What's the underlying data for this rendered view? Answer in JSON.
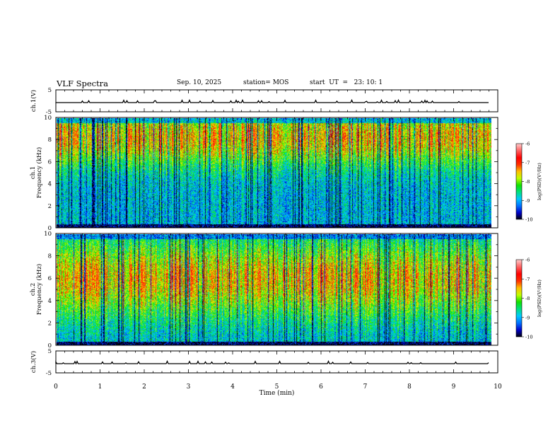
{
  "header": {
    "title": "VLF Spectra",
    "date": "Sep. 10, 2025",
    "station": "station= MOS",
    "start_ut": "start  UT  =   23: 10: 1"
  },
  "colors": {
    "colormap": [
      "#000000",
      "#0000c8",
      "#0070ff",
      "#00c8ff",
      "#00e080",
      "#10e000",
      "#c0ff00",
      "#ffc000",
      "#ff3000",
      "#ff0000",
      "#ff6060",
      "#ffc8c8"
    ],
    "background": "#ffffff",
    "axis": "#000000"
  },
  "chart_data": [
    {
      "id": "ch1-waveform",
      "type": "line",
      "ylabel": "ch.1(V)",
      "ylim": [
        -5,
        5
      ],
      "yticks": [
        "5",
        "-5"
      ],
      "xlim": [
        0,
        10
      ],
      "baseline": -0.8,
      "description_values": "near-constant trace around -0.8 V with small spikes"
    },
    {
      "id": "ch1-spectrogram",
      "type": "heatmap",
      "ylabel": "ch.1\nFrequency (kHz)",
      "ylabel_lines": [
        "ch.1",
        "Frequency (kHz)"
      ],
      "ylim": [
        0,
        10
      ],
      "yticks": [
        "0",
        "2",
        "4",
        "6",
        "8",
        "10"
      ],
      "xlim": [
        0,
        9.85
      ],
      "zlim": [
        -10,
        -6
      ],
      "dominant_band_khz": [
        7,
        9.5
      ],
      "colorbar": {
        "label": "log(PSD)(V²/Hz)",
        "ticks": [
          "-6",
          "-7",
          "-8",
          "-9",
          "-10"
        ]
      }
    },
    {
      "id": "ch2-spectrogram",
      "type": "heatmap",
      "ylabel": "ch.2\nFrequency (kHz)",
      "ylabel_lines": [
        "ch.2",
        "Frequency (kHz)"
      ],
      "ylim": [
        0,
        10
      ],
      "yticks": [
        "0",
        "2",
        "4",
        "6",
        "8",
        "10"
      ],
      "xlim": [
        0,
        9.85
      ],
      "zlim": [
        -10,
        -6
      ],
      "dominant_band_khz": [
        4,
        8
      ],
      "colorbar": {
        "label": "log(PSD)(V²/Hz)",
        "ticks": [
          "-6",
          "-7",
          "-8",
          "-9",
          "-10"
        ]
      }
    },
    {
      "id": "ch3-waveform",
      "type": "line",
      "ylabel": "ch.3(V)",
      "ylim": [
        -5,
        5
      ],
      "yticks": [
        "5",
        "-5"
      ],
      "xlim": [
        0,
        10
      ],
      "baseline": -0.8,
      "description_values": "near-constant trace around -0.8 V with small spikes"
    }
  ],
  "xaxis": {
    "label": "Time  (min)",
    "ticks": [
      "0",
      "1",
      "2",
      "3",
      "4",
      "5",
      "6",
      "7",
      "8",
      "9",
      "10"
    ],
    "range": [
      0,
      10
    ]
  }
}
